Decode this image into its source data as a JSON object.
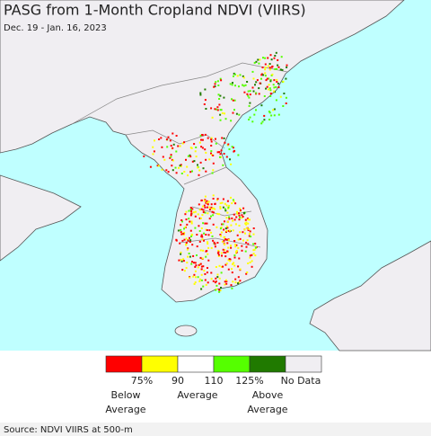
{
  "header": {
    "title": "PASG from 1-Month Cropland NDVI (VIIRS)",
    "subtitle": "Dec. 19 - Jan. 16, 2023"
  },
  "legend": {
    "colors": [
      "#ff0000",
      "#ffff00",
      "#ffffff",
      "#55ff00",
      "#207a00",
      "#f0eef2"
    ],
    "tick_labels": [
      "75%",
      "90",
      "110",
      "125%",
      "No Data"
    ],
    "captions": [
      [
        "Below",
        "Average"
      ],
      [
        "Average"
      ],
      [
        "Above",
        "Average"
      ]
    ]
  },
  "footer": {
    "source": "Source: NDVI VIIRS at 500-m"
  }
}
